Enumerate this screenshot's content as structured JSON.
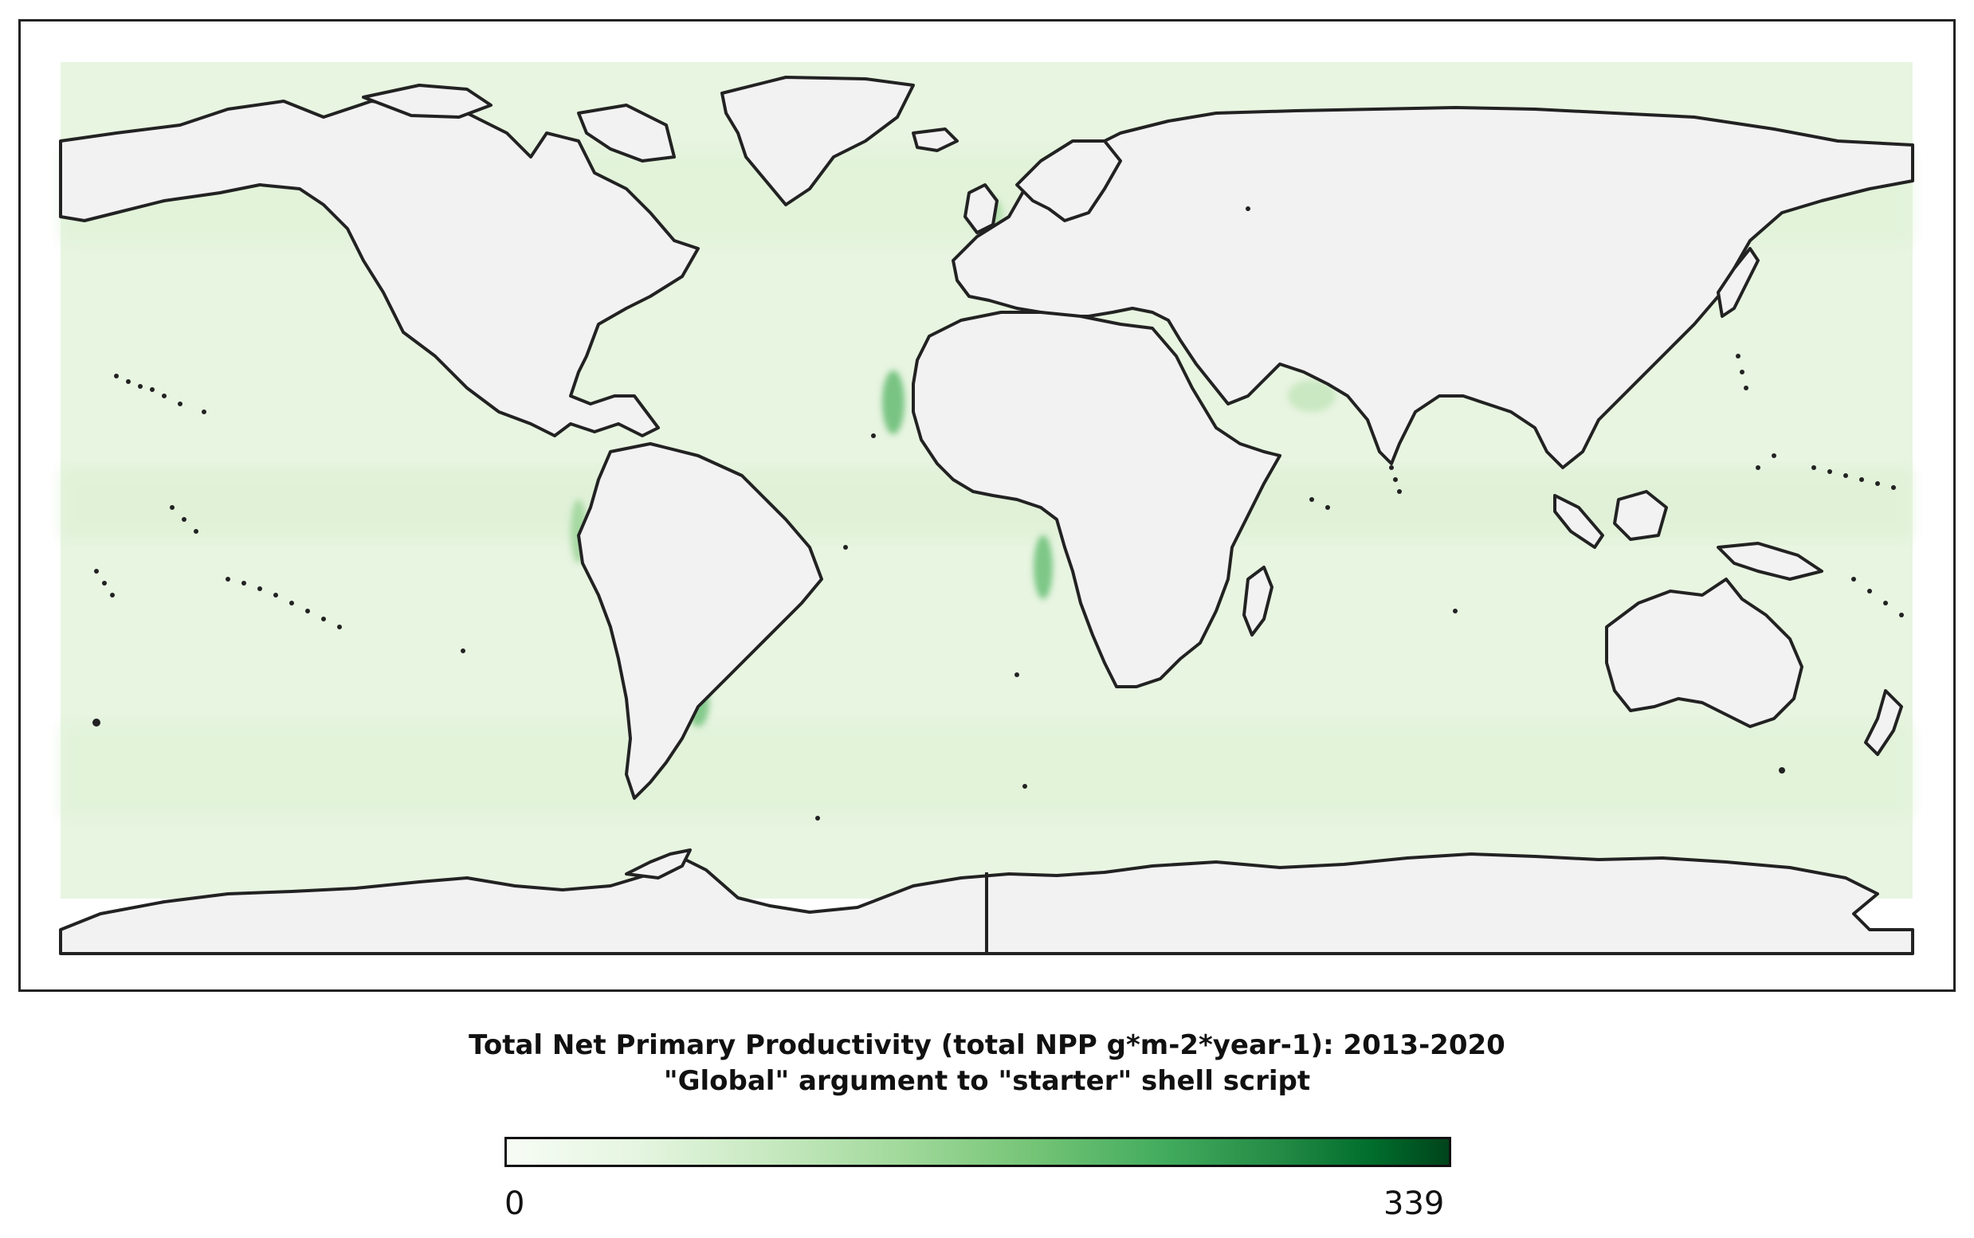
{
  "title": {
    "line1": "Total Net Primary Productivity (total NPP g*m-2*year-1): 2013-2020",
    "line2": "\"Global\" argument to \"starter\" shell script"
  },
  "colorbar": {
    "min_label": "0",
    "max_label": "339",
    "colormap": [
      "#f7fcf5",
      "#e5f5e0",
      "#c7e9c0",
      "#a1d99b",
      "#74c476",
      "#41ab5d",
      "#238b45",
      "#006d2c",
      "#00441b"
    ]
  },
  "map": {
    "projection": "equirectangular",
    "ocean_color": "#e8f5e1",
    "land_color": "#f2f2f2",
    "coastline_color": "#222222",
    "high_productivity_color": "#41ab5d"
  }
}
